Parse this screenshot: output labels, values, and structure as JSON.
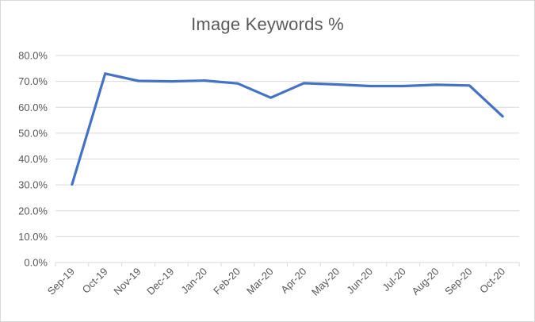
{
  "chart_data": {
    "type": "line",
    "title": "Image Keywords %",
    "xlabel": "",
    "ylabel": "",
    "categories": [
      "Sep-19",
      "Oct-19",
      "Nov-19",
      "Dec-19",
      "Jan-20",
      "Feb-20",
      "Mar-20",
      "Apr-20",
      "May-20",
      "Jun-20",
      "Jul-20",
      "Aug-20",
      "Sep-20",
      "Oct-20"
    ],
    "series": [
      {
        "values": [
          30.2,
          73.0,
          70.2,
          70.0,
          70.3,
          69.2,
          63.7,
          69.3,
          68.8,
          68.2,
          68.2,
          68.7,
          68.4,
          56.5
        ],
        "color": "#4472c4"
      }
    ],
    "ylim": [
      0,
      80
    ],
    "yticks": [
      "0.0%",
      "10.0%",
      "20.0%",
      "30.0%",
      "40.0%",
      "50.0%",
      "60.0%",
      "70.0%",
      "80.0%"
    ],
    "grid": true,
    "legend": "none",
    "gridline_color": "#d9d9d9"
  }
}
